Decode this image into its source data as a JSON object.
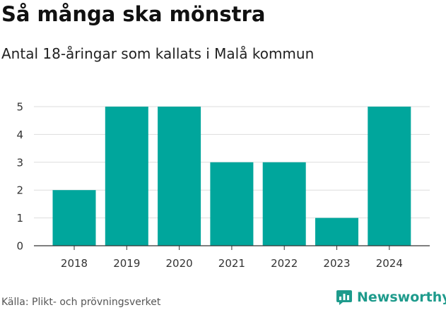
{
  "header": {
    "title": "Så många ska mönstra",
    "subtitle": "Antal 18-åringar som kallats i Malå kommun"
  },
  "footer": {
    "source": "Källa: Plikt- och prövningsverket",
    "brand": "Newsworthy"
  },
  "colors": {
    "bar": "#00a69c",
    "grid": "#dddddd",
    "axis": "#333333",
    "brand": "#1e9b8c"
  },
  "chart_data": {
    "type": "bar",
    "categories": [
      "2018",
      "2019",
      "2020",
      "2021",
      "2022",
      "2023",
      "2024"
    ],
    "values": [
      2,
      5,
      5,
      3,
      3,
      1,
      5
    ],
    "ylim": [
      0,
      5
    ],
    "yticks": [
      0,
      1,
      2,
      3,
      4,
      5
    ],
    "grid": true,
    "legend": "none"
  }
}
